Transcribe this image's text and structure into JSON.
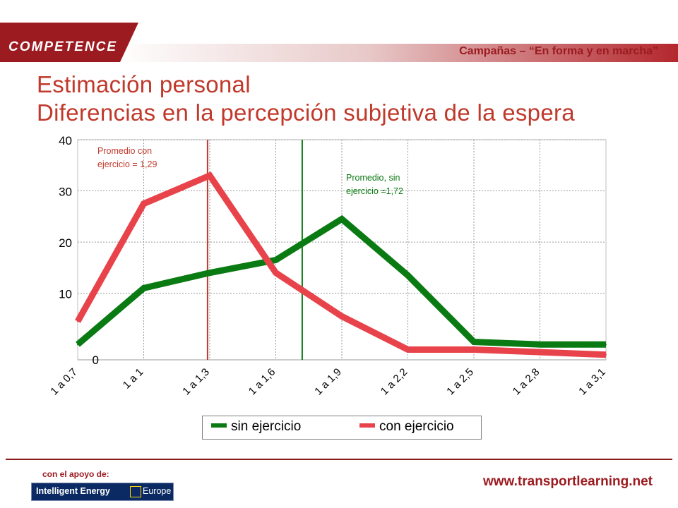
{
  "header": {
    "brand": "COMPETENCE",
    "campaign": "Campañas – “En forma y en marcha”"
  },
  "title": {
    "line1": "Estimación personal",
    "line2": "Diferencias en la percepción subjetiva de la espera"
  },
  "colors": {
    "brand_red": "#9b1b20",
    "title_red": "#c0392b",
    "series_green": "#0a7a12",
    "series_red": "#e8434a"
  },
  "chart_data": {
    "type": "line",
    "categories": [
      "1 a 0,7",
      "1 a 1",
      "1 a 1,3",
      "1 a 1,6",
      "1 a 1,9",
      "1 a 2,2",
      "1 a 2,5",
      "1 a 2,8",
      "1 a 3,1"
    ],
    "series": [
      {
        "name": "sin ejercicio",
        "color": "#0a7a12",
        "values": [
          0,
          11,
          14,
          16.5,
          24.5,
          13.5,
          0.5,
          0,
          0
        ]
      },
      {
        "name": "con ejercicio",
        "color": "#e8434a",
        "values": [
          4.5,
          27.5,
          33,
          14,
          5.5,
          -1,
          -1,
          -1.5,
          -2
        ]
      }
    ],
    "yticks": [
      0,
      10,
      20,
      30,
      40
    ],
    "ylim": [
      -3,
      40
    ],
    "grid": true,
    "legend_position": "bottom",
    "annotations": [
      {
        "text_line1": "Promedio con",
        "text_line2": "ejercicio = 1,29",
        "x": 1.29,
        "color": "#c0392b"
      },
      {
        "text_line1": "Promedio, sin",
        "text_line2": "ejercicio =1,72",
        "x": 1.72,
        "color": "#0a7a12"
      }
    ]
  },
  "legend": {
    "item1": "sin ejercicio",
    "item2": "con ejercicio"
  },
  "footer": {
    "support_label": "con el apoyo de:",
    "logo_text": "Intelligent Energy",
    "logo_europe": "Europe",
    "website": "www.transportlearning.net"
  }
}
